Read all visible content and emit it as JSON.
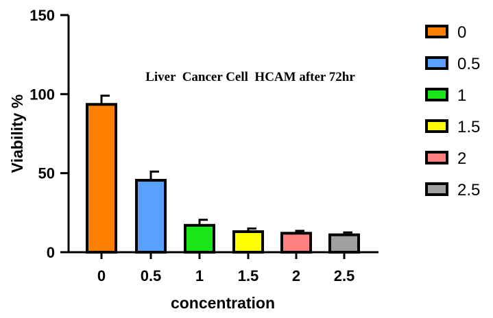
{
  "chart_data": {
    "type": "bar",
    "title": "Liver  Cancer Cell  HCAM after 72hr",
    "xlabel": "concentration",
    "ylabel": "Viability %",
    "ylim": [
      0,
      150
    ],
    "yticks": [
      "0",
      "50",
      "100",
      "150"
    ],
    "categories": [
      "0",
      "0.5",
      "1",
      "1.5",
      "2",
      "2.5"
    ],
    "values": [
      93.5,
      45.5,
      17,
      13,
      12,
      11
    ],
    "errors": [
      5.5,
      5.5,
      3.5,
      2,
      1.5,
      1.5
    ],
    "colors": [
      "#ff8000",
      "#5aa0ff",
      "#19e619",
      "#ffff00",
      "#ff8080",
      "#a0a0a0"
    ],
    "grid": false,
    "legend": {
      "placement": "right",
      "entries": [
        "0",
        "0.5",
        "1",
        "1.5",
        "2",
        "2.5"
      ]
    }
  }
}
